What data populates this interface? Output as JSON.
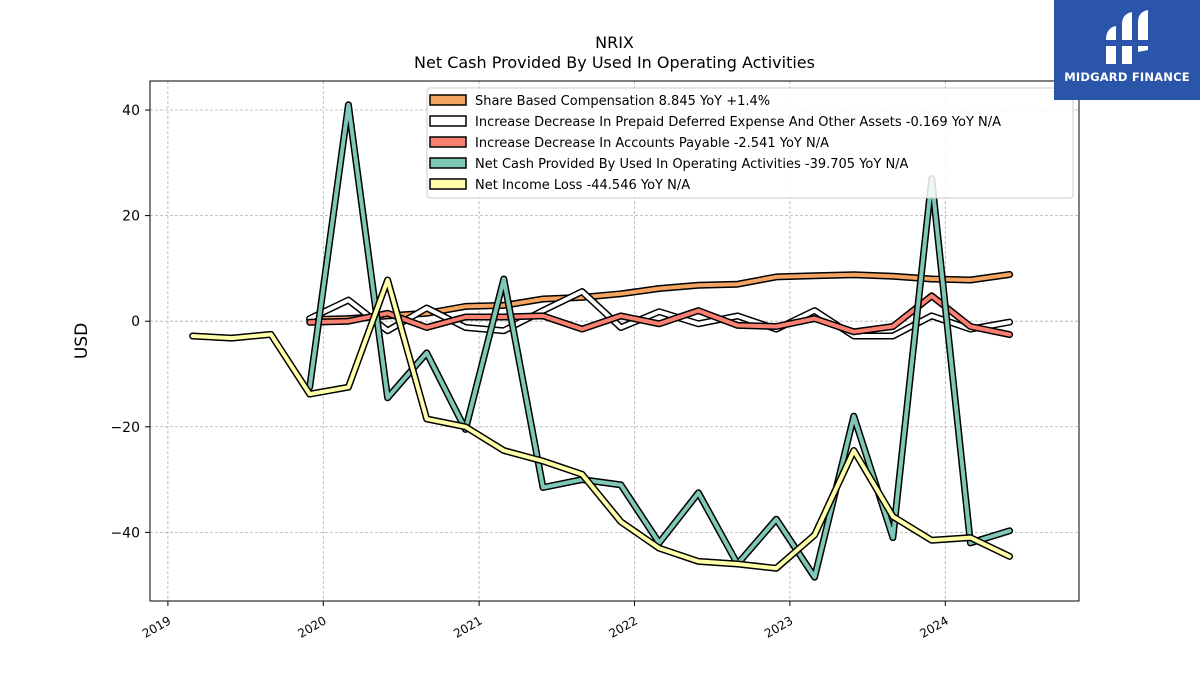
{
  "brand": {
    "name": "MIDGARD FINANCE",
    "color": "#2a55a8"
  },
  "chart_data": {
    "type": "line",
    "title": "NRIX",
    "subtitle": "Net Cash Provided By Used In Operating Activities",
    "xlabel": "",
    "ylabel": "USD",
    "xlim": [
      "2018-11-20",
      "2024-11-10"
    ],
    "ylim": [
      -53,
      45.5
    ],
    "yticks": [
      -40,
      -20,
      0,
      20,
      40
    ],
    "xticks": [
      "2019",
      "2020",
      "2021",
      "2022",
      "2023",
      "2024"
    ],
    "grid": true,
    "legend_position": "top-center",
    "series": [
      {
        "name": "Share Based Compensation",
        "legend_label": "Share Based Compensation  8.845 YoY +1.4%",
        "color": "#f4a460",
        "x": [
          "2019-11-30",
          "2020-02-29",
          "2020-05-31",
          "2020-08-31",
          "2020-11-30",
          "2021-02-28",
          "2021-05-31",
          "2021-08-31",
          "2021-11-30",
          "2022-02-28",
          "2022-05-31",
          "2022-08-31",
          "2022-11-30",
          "2023-02-28",
          "2023-05-31",
          "2023-08-31",
          "2023-11-30",
          "2024-02-29",
          "2024-05-31"
        ],
        "y": [
          0.3,
          0.5,
          1.0,
          1.5,
          2.8,
          3.0,
          4.2,
          4.5,
          5.2,
          6.2,
          6.8,
          7.0,
          8.4,
          8.6,
          8.8,
          8.5,
          8.0,
          7.8,
          8.845
        ]
      },
      {
        "name": "Increase Decrease In Prepaid Deferred Expense And Other Assets",
        "legend_label": "Increase Decrease In Prepaid Deferred Expense And Other Assets  -0.169 YoY N/A",
        "color": "#ffffff",
        "x": [
          "2019-11-30",
          "2020-02-29",
          "2020-05-31",
          "2020-08-31",
          "2020-11-30",
          "2021-02-28",
          "2021-05-31",
          "2021-08-31",
          "2021-11-30",
          "2022-02-28",
          "2022-05-31",
          "2022-08-31",
          "2022-11-30",
          "2023-02-28",
          "2023-05-31",
          "2023-08-31",
          "2023-11-30",
          "2024-02-29",
          "2024-05-31"
        ],
        "y": [
          0.5,
          4.0,
          -1.8,
          2.5,
          -1.2,
          -1.8,
          2.0,
          5.6,
          -1.2,
          1.8,
          -0.5,
          1.0,
          -1.5,
          2.0,
          -2.8,
          -2.8,
          1.0,
          -1.5,
          -0.169
        ]
      },
      {
        "name": "Increase Decrease In Accounts Payable",
        "legend_label": "Increase Decrease In Accounts Payable  -2.541 YoY N/A",
        "color": "#fa8072",
        "x": [
          "2019-11-30",
          "2020-02-29",
          "2020-05-31",
          "2020-08-31",
          "2020-11-30",
          "2021-02-28",
          "2021-05-31",
          "2021-08-31",
          "2021-11-30",
          "2022-02-28",
          "2022-05-31",
          "2022-08-31",
          "2022-11-30",
          "2023-02-28",
          "2023-05-31",
          "2023-08-31",
          "2023-11-30",
          "2024-02-29",
          "2024-05-31"
        ],
        "y": [
          -0.2,
          0.0,
          1.5,
          -1.2,
          0.8,
          0.8,
          1.0,
          -1.5,
          1.0,
          -0.5,
          2.0,
          -0.8,
          -1.0,
          0.5,
          -2.0,
          -1.0,
          4.8,
          -1.0,
          -2.541
        ]
      },
      {
        "name": "Net Cash Provided By Used In Operating Activities",
        "legend_label": "Net Cash Provided By Used In Operating Activities  -39.705 YoY N/A",
        "color": "#7fc8b8",
        "x": [
          "2019-11-30",
          "2020-02-29",
          "2020-05-31",
          "2020-08-31",
          "2020-11-30",
          "2021-02-28",
          "2021-05-31",
          "2021-08-31",
          "2021-11-30",
          "2022-02-28",
          "2022-05-31",
          "2022-08-31",
          "2022-11-30",
          "2023-02-28",
          "2023-05-31",
          "2023-08-31",
          "2023-11-30",
          "2024-02-29",
          "2024-05-31"
        ],
        "y": [
          -12.5,
          41.0,
          -14.5,
          -6.0,
          -20.5,
          8.0,
          -31.5,
          -30.0,
          -31.0,
          -42.0,
          -32.5,
          -46.0,
          -37.5,
          -48.5,
          -18.0,
          -41.0,
          27.0,
          -42.0,
          -39.705
        ]
      },
      {
        "name": "Net Income Loss",
        "legend_label": "Net Income Loss  -44.546 YoY N/A",
        "color": "#ffffaa",
        "x": [
          "2019-02-28",
          "2019-05-31",
          "2019-08-31",
          "2019-11-30",
          "2020-02-29",
          "2020-05-31",
          "2020-08-31",
          "2020-11-30",
          "2021-02-28",
          "2021-05-31",
          "2021-08-31",
          "2021-11-30",
          "2022-02-28",
          "2022-05-31",
          "2022-08-31",
          "2022-11-30",
          "2023-02-28",
          "2023-05-31",
          "2023-08-31",
          "2023-11-30",
          "2024-02-29",
          "2024-05-31"
        ],
        "y": [
          -2.8,
          -3.2,
          -2.5,
          -13.8,
          -12.5,
          7.8,
          -18.5,
          -20.0,
          -24.5,
          -26.5,
          -29.0,
          -38.0,
          -43.0,
          -45.5,
          -46.0,
          -46.8,
          -40.5,
          -24.5,
          -37.0,
          -41.5,
          -41.0,
          -44.546
        ]
      }
    ]
  }
}
